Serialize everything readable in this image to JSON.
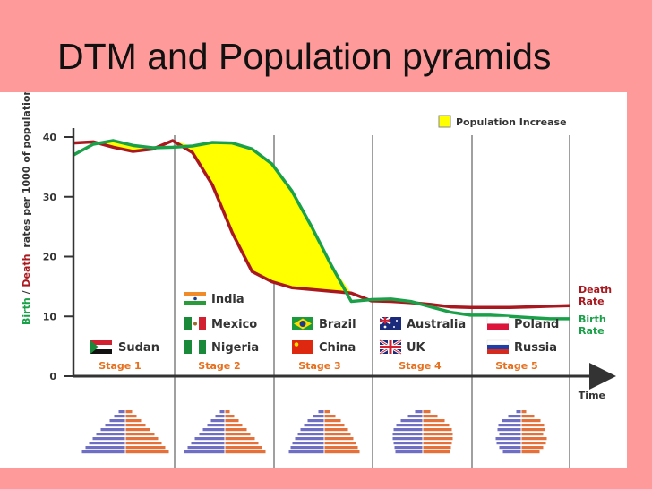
{
  "slide": {
    "title": "DTM and Population pyramids"
  },
  "chart_data": {
    "type": "line",
    "title": "",
    "xlabel": "Time",
    "ylabel": {
      "birth": "Birth",
      "sep": "/",
      "death": "Death",
      "rest": "rates per 1000 of population"
    },
    "ylim": [
      0,
      40
    ],
    "yticks": [
      "0",
      "10",
      "20",
      "30",
      "40"
    ],
    "x": [
      0,
      4,
      8,
      12,
      16,
      20,
      24,
      28,
      32,
      36,
      40,
      44,
      48,
      52,
      56,
      60,
      64,
      68,
      72,
      76,
      80,
      84,
      88,
      92,
      96,
      100
    ],
    "series": [
      {
        "name": "Birth Rate",
        "label_line1": "Birth",
        "label_line2": "Rate",
        "color": "#1aa048",
        "values": [
          37,
          38.8,
          39.4,
          38.6,
          38.2,
          38.3,
          38.5,
          39.1,
          39.0,
          38.0,
          35.5,
          31.0,
          25.0,
          18.5,
          12.5,
          12.8,
          12.9,
          12.5,
          11.6,
          10.7,
          10.2,
          10.2,
          10.0,
          9.8,
          9.6,
          9.6
        ]
      },
      {
        "name": "Death Rate",
        "label_line1": "Death",
        "label_line2": "Rate",
        "color": "#a8181e",
        "values": [
          39,
          39.2,
          38.3,
          37.6,
          38.0,
          39.4,
          37.4,
          32.0,
          24.0,
          17.5,
          15.8,
          14.8,
          14.5,
          14.2,
          13.9,
          12.6,
          12.5,
          12.3,
          12.0,
          11.6,
          11.5,
          11.5,
          11.5,
          11.6,
          11.7,
          11.8
        ]
      }
    ],
    "legend": {
      "label": "Population Increase",
      "color": "#ffff00",
      "position": "top-right"
    },
    "stages": [
      {
        "label": "Stage 1",
        "countries": [
          {
            "name": "Sudan",
            "flag": "sudan-flag"
          }
        ]
      },
      {
        "label": "Stage 2",
        "countries": [
          {
            "name": "India",
            "flag": "india-flag"
          },
          {
            "name": "Mexico",
            "flag": "mexico-flag"
          },
          {
            "name": "Nigeria",
            "flag": "nigeria-flag"
          }
        ]
      },
      {
        "label": "Stage 3",
        "countries": [
          {
            "name": "Brazil",
            "flag": "brazil-flag"
          },
          {
            "name": "China",
            "flag": "china-flag"
          }
        ]
      },
      {
        "label": "Stage 4",
        "countries": [
          {
            "name": "Australia",
            "flag": "australia-flag"
          },
          {
            "name": "UK",
            "flag": "uk-flag"
          }
        ]
      },
      {
        "label": "Stage 5",
        "countries": [
          {
            "name": "Poland",
            "flag": "poland-flag"
          },
          {
            "name": "Russia",
            "flag": "russia-flag"
          }
        ]
      }
    ],
    "pyramids": [
      {
        "stage": "Stage 1",
        "shape": "expansive",
        "male": [
          7,
          12,
          17,
          22,
          27,
          32,
          36,
          40,
          44,
          48
        ],
        "female": [
          7,
          12,
          17,
          22,
          27,
          32,
          36,
          40,
          44,
          48
        ]
      },
      {
        "stage": "Stage 2",
        "shape": "expansive",
        "male": [
          5,
          10,
          15,
          19,
          24,
          28,
          33,
          37,
          41,
          45
        ],
        "female": [
          5,
          10,
          15,
          19,
          24,
          28,
          33,
          37,
          41,
          45
        ]
      },
      {
        "stage": "Stage 3",
        "shape": "progressive",
        "male": [
          6,
          12,
          18,
          22,
          26,
          29,
          32,
          35,
          37,
          39
        ],
        "female": [
          6,
          12,
          18,
          22,
          26,
          29,
          32,
          35,
          37,
          39
        ]
      },
      {
        "stage": "Stage 4",
        "shape": "stationary",
        "male": [
          8,
          16,
          24,
          29,
          32,
          33,
          33,
          32,
          31,
          30
        ],
        "female": [
          8,
          16,
          24,
          29,
          32,
          33,
          33,
          32,
          31,
          30
        ]
      },
      {
        "stage": "Stage 5",
        "shape": "constrictive",
        "male": [
          5,
          14,
          21,
          25,
          26,
          24,
          28,
          27,
          24,
          20
        ],
        "female": [
          5,
          14,
          21,
          25,
          26,
          24,
          28,
          27,
          24,
          20
        ]
      }
    ],
    "colors": {
      "male": "#6e6ec4",
      "female": "#e5703a",
      "divider": "#a0a0a0",
      "axis": "#333333"
    }
  }
}
